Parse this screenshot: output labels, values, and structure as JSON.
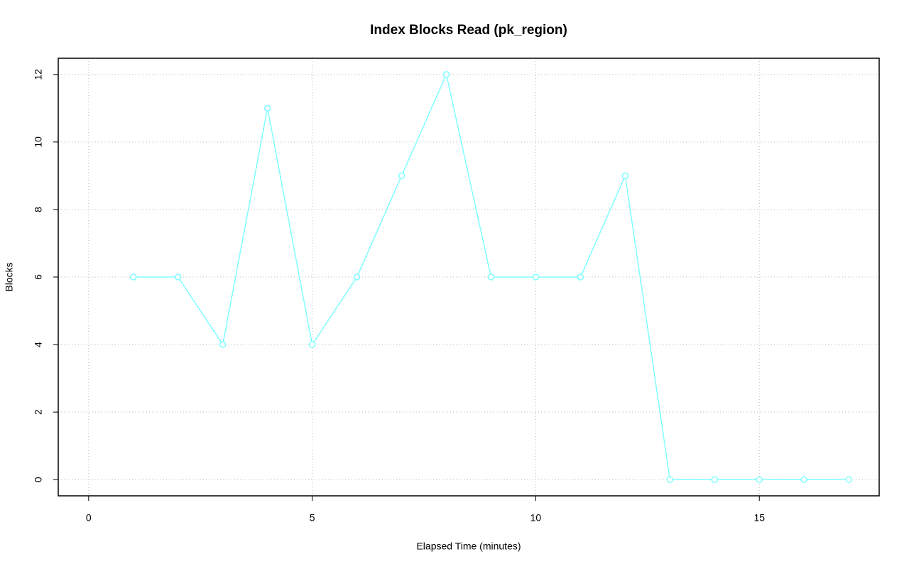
{
  "chart_data": {
    "type": "line",
    "title": "Index Blocks Read (pk_region)",
    "x_label": "Elapsed Time (minutes)",
    "y_label": "Blocks",
    "series": [
      {
        "color": "#80ffff",
        "x": [
          1,
          2,
          3,
          4,
          5,
          6,
          7,
          8,
          9,
          10,
          11,
          12,
          13,
          14,
          15,
          16,
          17
        ],
        "values": [
          6,
          6,
          4,
          11,
          4,
          6,
          9,
          12,
          6,
          6,
          6,
          9,
          0,
          0,
          0,
          0,
          0
        ]
      }
    ],
    "xlim": [
      -0.68,
      17.68
    ],
    "xticks": [
      0,
      5,
      10,
      15
    ],
    "ylim": [
      -0.48,
      12.48
    ],
    "yticks": [
      0,
      2,
      4,
      6,
      8,
      10,
      12
    ],
    "grid": true
  }
}
